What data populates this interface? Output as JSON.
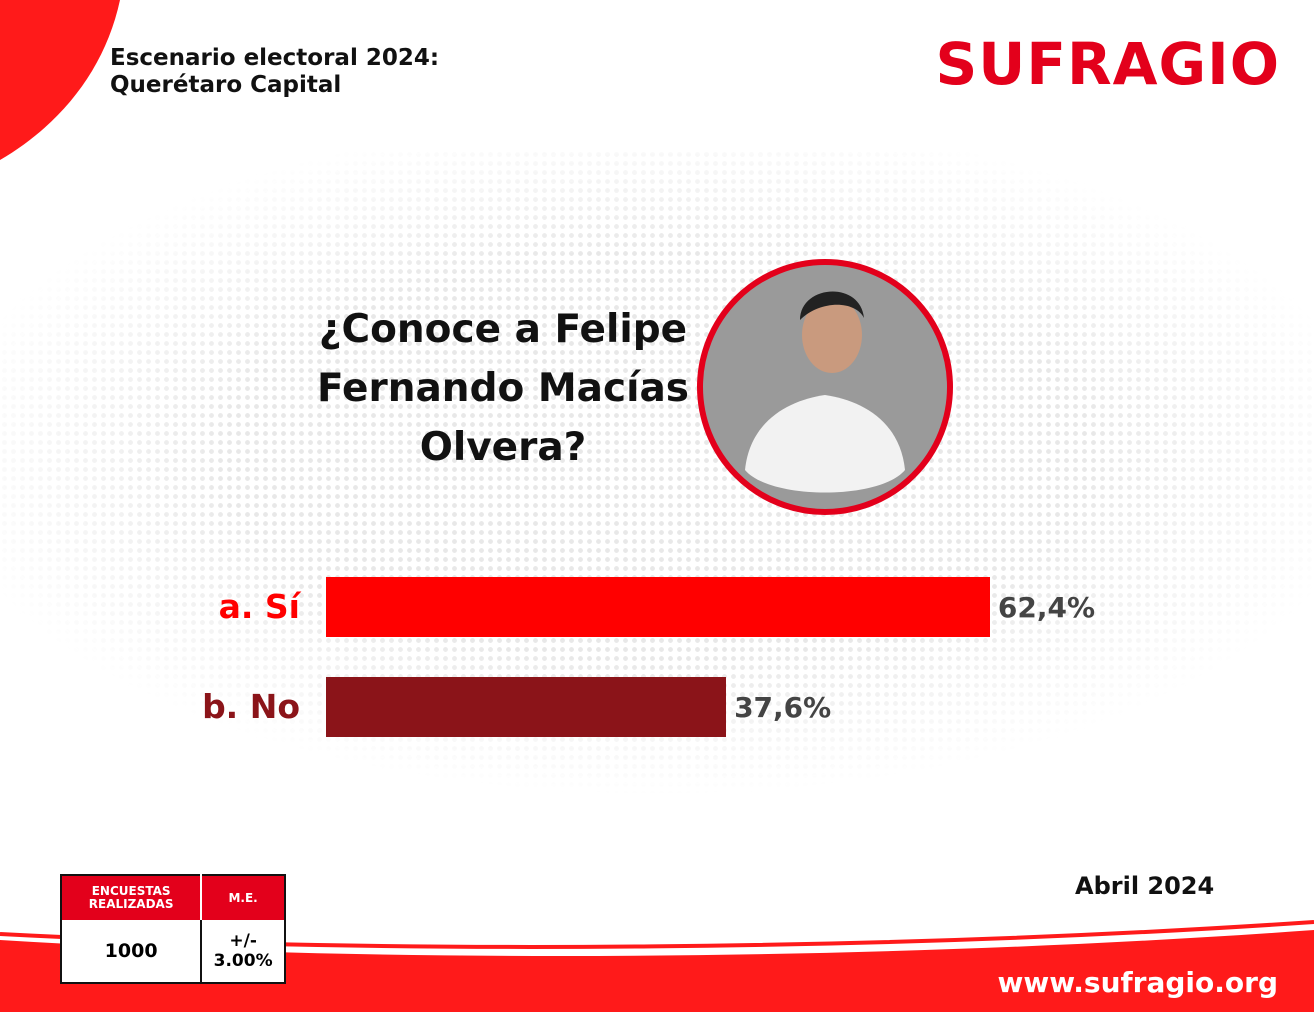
{
  "header": {
    "title_line1": "Escenario electoral 2024:",
    "title_line2": "Querétaro Capital",
    "logo": "SUFRAGIO"
  },
  "chart_data": {
    "type": "bar",
    "orientation": "horizontal",
    "title": "¿Conoce a Felipe Fernando Macías Olvera?",
    "categories": [
      "a. Sí",
      "b. No"
    ],
    "values": [
      62.4,
      37.6
    ],
    "value_labels": [
      "62,4%",
      "37,6%"
    ],
    "colors": [
      "#ff0000",
      "#8b1419"
    ]
  },
  "footer": {
    "table": {
      "headers": [
        "ENCUESTAS REALIZADAS",
        "M.E."
      ],
      "row": [
        "1000",
        "+/- 3.00%"
      ]
    },
    "date": "Abril 2024",
    "url": "www.sufragio.org"
  }
}
